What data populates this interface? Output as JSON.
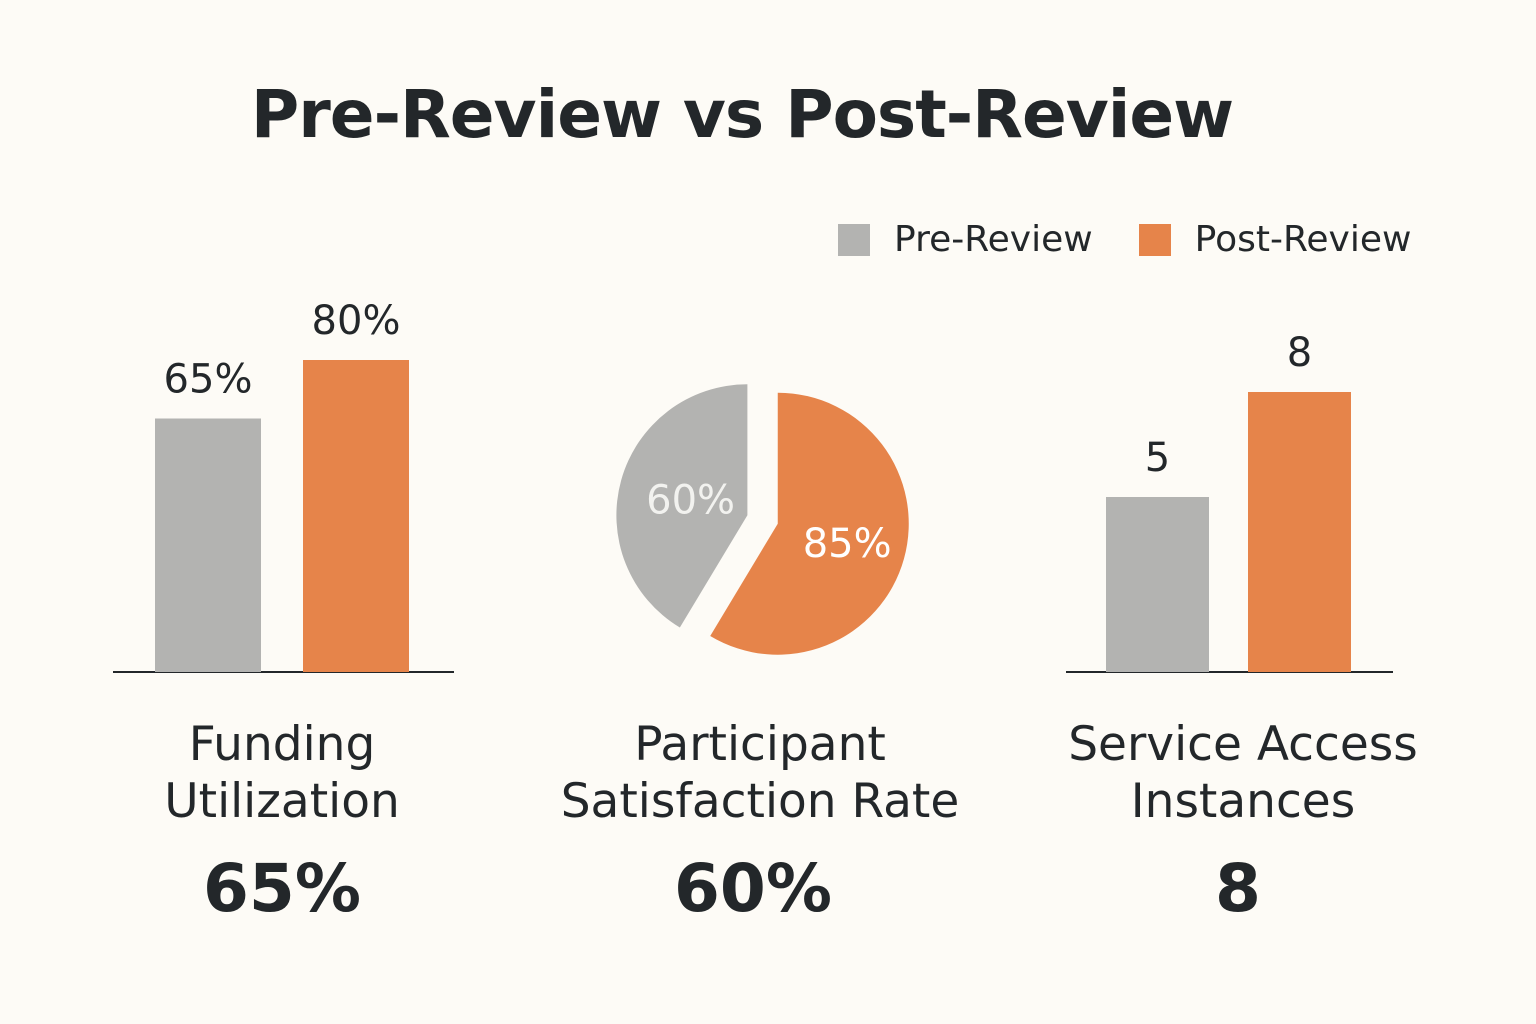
{
  "title": "Pre-Review vs Post-Review",
  "legend": [
    {
      "label": "Pre-Review",
      "color": "#b3b3b1"
    },
    {
      "label": "Post-Review",
      "color": "#e6844a"
    }
  ],
  "colors": {
    "pre": "#b3b3b1",
    "post": "#e6844a",
    "text": "#23272a",
    "background": "#fdfbf6"
  },
  "chart_data": [
    {
      "type": "bar",
      "categories": [
        "Pre-Review",
        "Post-Review"
      ],
      "values": [
        65,
        80
      ],
      "value_labels": [
        "65%",
        "80%"
      ],
      "ylim": [
        0,
        100
      ],
      "caption_lines": [
        "Funding",
        "Utilization"
      ],
      "headline": "65%"
    },
    {
      "type": "pie",
      "slices": [
        {
          "label": "Pre-Review",
          "value": 60,
          "value_label": "60%"
        },
        {
          "label": "Post-Review",
          "value": 85,
          "value_label": "85%"
        }
      ],
      "caption_lines": [
        "Participant",
        "Satisfaction Rate"
      ],
      "headline": "60%"
    },
    {
      "type": "bar",
      "categories": [
        "Pre-Review",
        "Post-Review"
      ],
      "values": [
        5,
        8
      ],
      "value_labels": [
        "5",
        "8"
      ],
      "ylim": [
        0,
        10
      ],
      "caption_lines": [
        "Service Access",
        "Instances"
      ],
      "headline": "8"
    }
  ]
}
